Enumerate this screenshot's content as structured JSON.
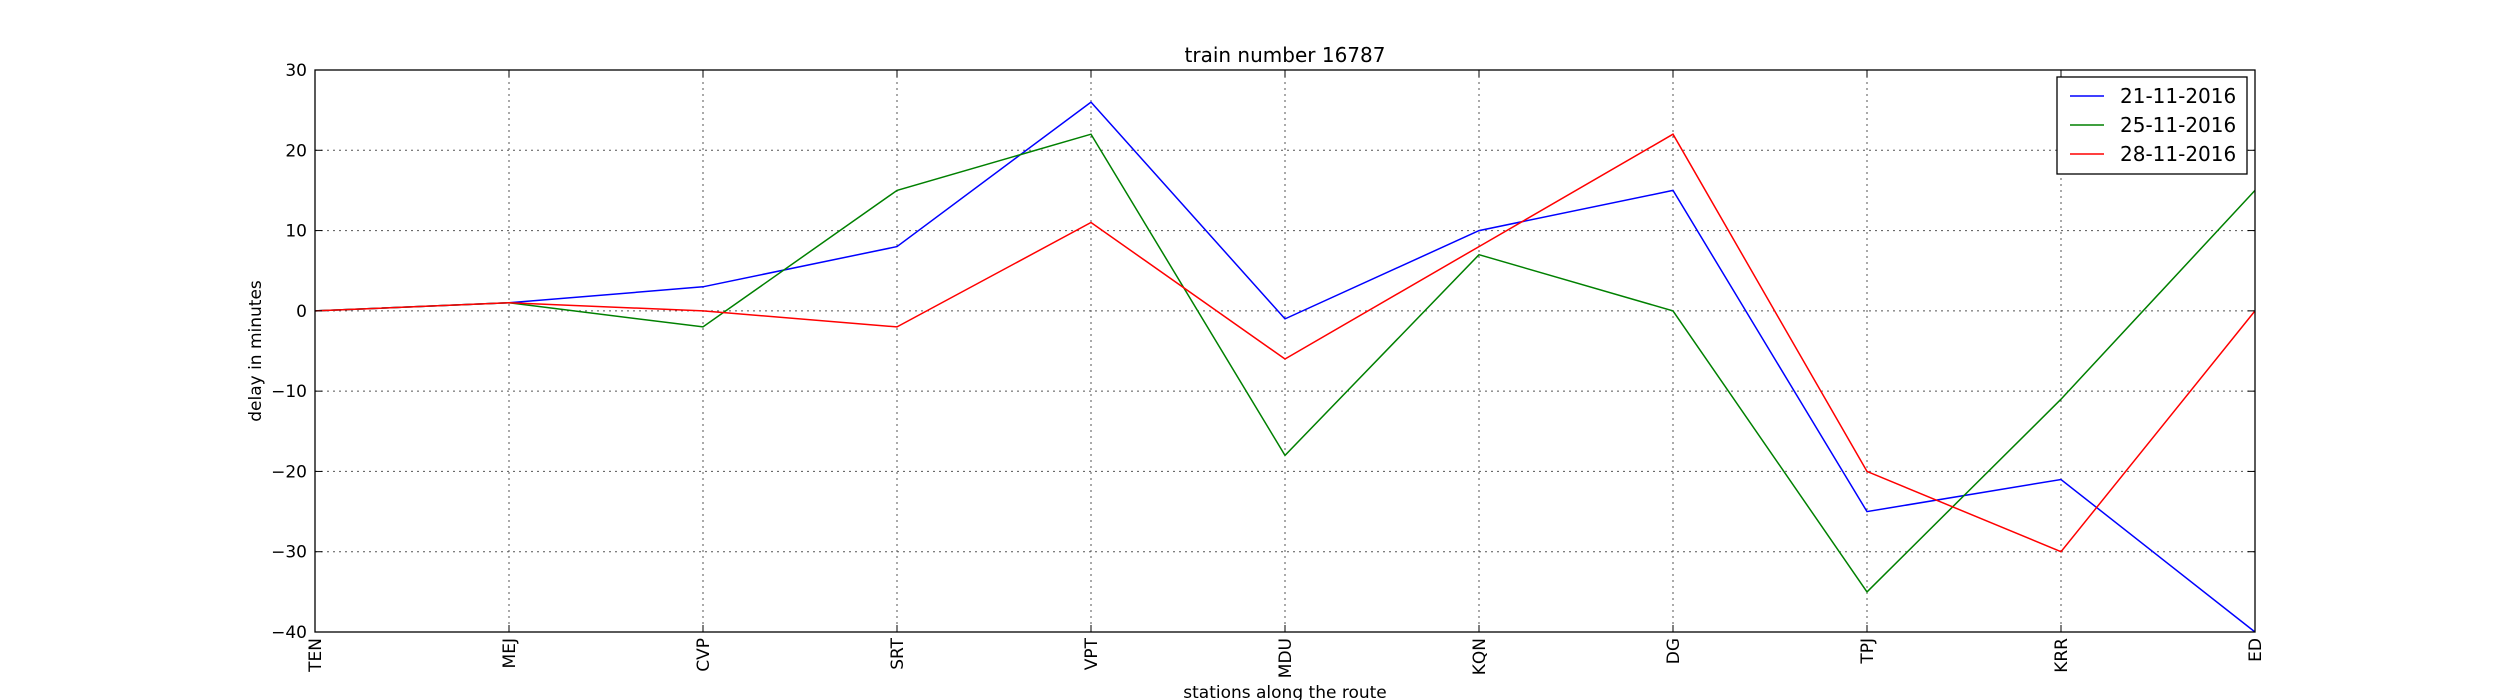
{
  "chart_data": {
    "type": "line",
    "title": "train number 16787",
    "xlabel": "stations along the route",
    "ylabel": "delay in minutes",
    "categories": [
      "TEN",
      "MEJ",
      "CVP",
      "SRT",
      "VPT",
      "MDU",
      "KQN",
      "DG",
      "TPJ",
      "KRR",
      "ED"
    ],
    "ylim": [
      -40,
      30
    ],
    "yticks": [
      -40,
      -30,
      -20,
      -10,
      0,
      10,
      20,
      30
    ],
    "ytick_labels": [
      "−40",
      "−30",
      "−20",
      "−10",
      "0",
      "10",
      "20",
      "30"
    ],
    "grid": true,
    "legend_position": "top-right",
    "series": [
      {
        "name": "21-11-2016",
        "color": "#0000ff",
        "values": [
          0,
          1,
          3,
          8,
          26,
          -1,
          10,
          15,
          -25,
          -21,
          -40
        ]
      },
      {
        "name": "25-11-2016",
        "color": "#008000",
        "values": [
          0,
          1,
          -2,
          15,
          22,
          -18,
          7,
          0,
          -35,
          -11,
          15
        ]
      },
      {
        "name": "28-11-2016",
        "color": "#ff0000",
        "values": [
          0,
          1,
          0,
          -2,
          11,
          -6,
          8,
          22,
          -20,
          -30,
          0
        ]
      }
    ]
  }
}
